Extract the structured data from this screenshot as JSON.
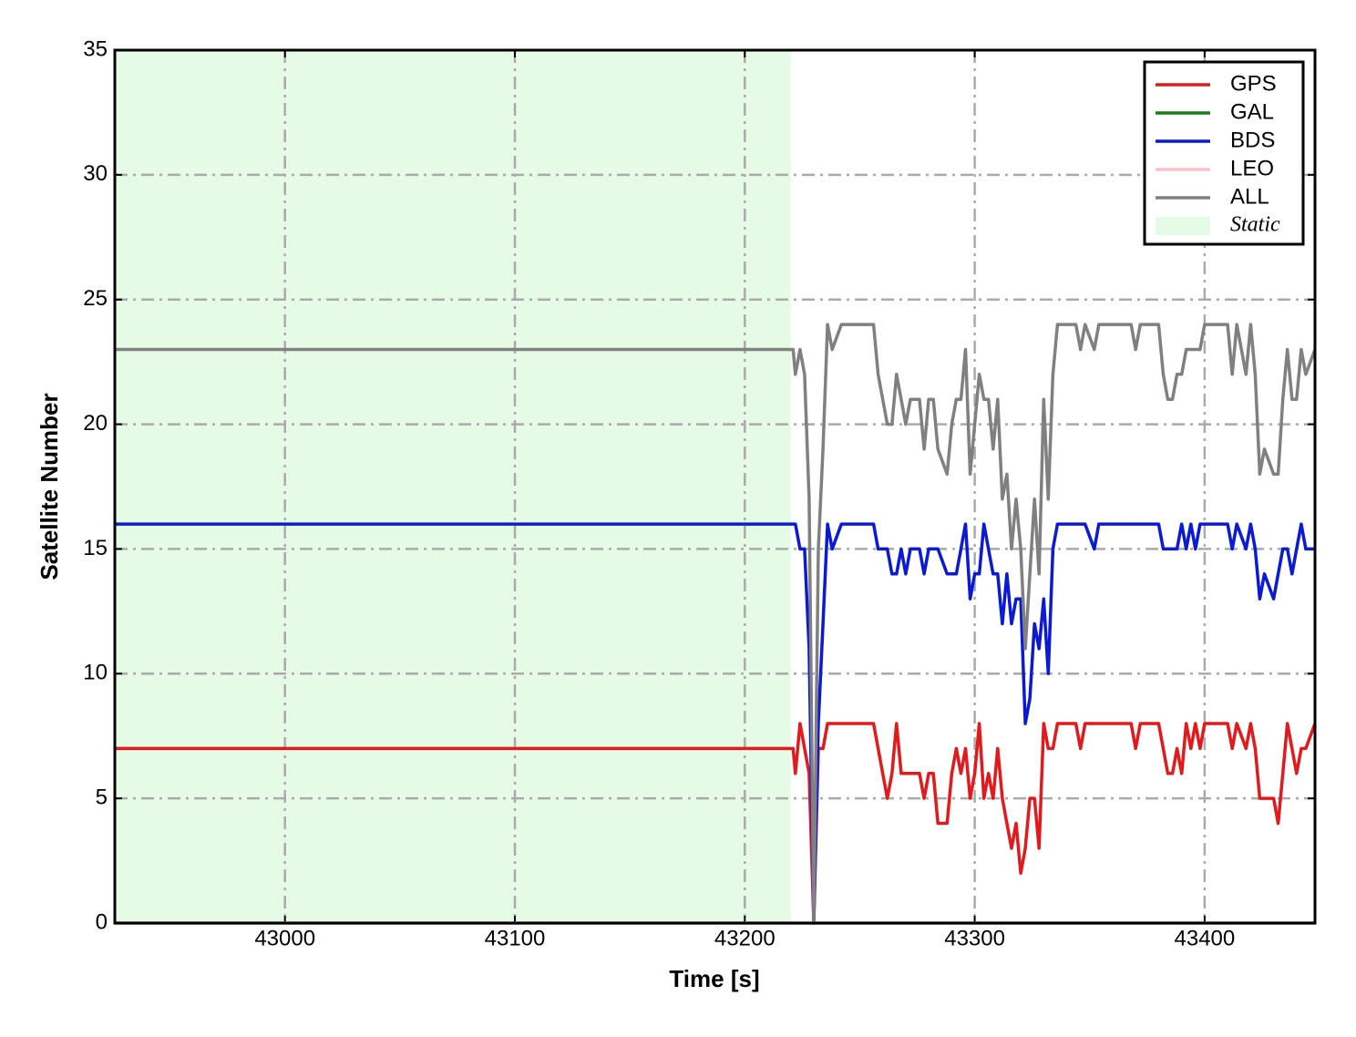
{
  "chart_data": {
    "type": "line",
    "xlabel": "Time [s]",
    "ylabel": "Satellite Number",
    "x": [
      42926,
      43221,
      43222,
      43224,
      43226,
      43228,
      43230,
      43232,
      43234,
      43236,
      43238,
      43242,
      43256,
      43258,
      43262,
      43264,
      43266,
      43268,
      43270,
      43272,
      43276,
      43278,
      43280,
      43282,
      43284,
      43288,
      43290,
      43292,
      43294,
      43296,
      43298,
      43300,
      43302,
      43304,
      43306,
      43308,
      43310,
      43312,
      43314,
      43316,
      43318,
      43320,
      43322,
      43324,
      43326,
      43328,
      43330,
      43332,
      43334,
      43336,
      43344,
      43346,
      43348,
      43352,
      43354,
      43368,
      43370,
      43372,
      43380,
      43382,
      43384,
      43386,
      43388,
      43390,
      43392,
      43394,
      43396,
      43398,
      43400,
      43410,
      43412,
      43414,
      43418,
      43420,
      43422,
      43424,
      43426,
      43430,
      43432,
      43434,
      43436,
      43438,
      43440,
      43442,
      43444,
      43448
    ],
    "series": [
      {
        "name": "GPS",
        "color": "#e31a1c",
        "values": [
          7,
          7,
          6,
          8,
          7,
          6,
          0,
          7,
          7,
          8,
          8,
          8,
          8,
          7,
          5,
          6,
          8,
          6,
          6,
          6,
          6,
          5,
          6,
          6,
          4,
          4,
          6,
          7,
          6,
          7,
          5,
          6,
          8,
          5,
          6,
          5,
          7,
          5,
          4,
          3,
          4,
          2,
          3,
          5,
          5,
          3,
          8,
          7,
          7,
          8,
          8,
          7,
          8,
          8,
          8,
          8,
          7,
          8,
          8,
          7,
          6,
          6,
          7,
          6,
          8,
          7,
          8,
          7,
          8,
          8,
          7,
          8,
          7,
          8,
          7,
          5,
          5,
          5,
          4,
          6,
          8,
          7,
          6,
          7,
          7,
          8
        ]
      },
      {
        "name": "GAL",
        "color": "#1a7f1a",
        "values": [
          0,
          0,
          0,
          0,
          0,
          0,
          0,
          0,
          0,
          0,
          0,
          0,
          0,
          0,
          0,
          0,
          0,
          0,
          0,
          0,
          0,
          0,
          0,
          0,
          0,
          0,
          0,
          0,
          0,
          0,
          0,
          0,
          0,
          0,
          0,
          0,
          0,
          0,
          0,
          0,
          0,
          0,
          0,
          0,
          0,
          0,
          0,
          0,
          0,
          0,
          0,
          0,
          0,
          0,
          0,
          0,
          0,
          0,
          0,
          0,
          0,
          0,
          0,
          0,
          0,
          0,
          0,
          0,
          0,
          0,
          0,
          0,
          0,
          0,
          0,
          0,
          0,
          0,
          0,
          0,
          0,
          0,
          0,
          0,
          0,
          0
        ]
      },
      {
        "name": "BDS",
        "color": "#0a1ad6",
        "values": [
          16,
          16,
          16,
          15,
          15,
          11,
          0,
          8,
          12,
          16,
          15,
          16,
          16,
          15,
          15,
          14,
          14,
          15,
          14,
          15,
          15,
          14,
          15,
          15,
          15,
          14,
          14,
          14,
          15,
          16,
          13,
          14,
          14,
          16,
          15,
          14,
          14,
          12,
          14,
          12,
          13,
          13,
          8,
          9,
          12,
          11,
          13,
          10,
          15,
          16,
          16,
          16,
          16,
          15,
          16,
          16,
          16,
          16,
          16,
          15,
          15,
          15,
          15,
          16,
          15,
          16,
          15,
          16,
          16,
          16,
          15,
          16,
          15,
          16,
          15,
          13,
          14,
          13,
          14,
          15,
          15,
          14,
          15,
          16,
          15,
          15
        ]
      },
      {
        "name": "LEO",
        "color": "#ffc0cb",
        "values": [
          0,
          0,
          0,
          0,
          0,
          0,
          0,
          0,
          0,
          0,
          0,
          0,
          0,
          0,
          0,
          0,
          0,
          0,
          0,
          0,
          0,
          0,
          0,
          0,
          0,
          0,
          0,
          0,
          0,
          0,
          0,
          0,
          0,
          0,
          0,
          0,
          0,
          0,
          0,
          0,
          0,
          0,
          0,
          0,
          0,
          0,
          0,
          0,
          0,
          0,
          0,
          0,
          0,
          0,
          0,
          0,
          0,
          0,
          0,
          0,
          0,
          0,
          0,
          0,
          0,
          0,
          0,
          0,
          0,
          0,
          0,
          0,
          0,
          0,
          0,
          0,
          0,
          0,
          0,
          0,
          0,
          0,
          0,
          0,
          0,
          0
        ]
      },
      {
        "name": "ALL",
        "color": "#808080",
        "values": [
          23,
          23,
          22,
          23,
          22,
          17,
          0,
          15,
          19,
          24,
          23,
          24,
          24,
          22,
          20,
          20,
          22,
          21,
          20,
          21,
          21,
          19,
          21,
          21,
          19,
          18,
          20,
          21,
          21,
          23,
          18,
          20,
          22,
          21,
          21,
          19,
          21,
          17,
          18,
          15,
          17,
          15,
          11,
          14,
          17,
          14,
          21,
          17,
          22,
          24,
          24,
          23,
          24,
          23,
          24,
          24,
          23,
          24,
          24,
          22,
          21,
          21,
          22,
          22,
          23,
          23,
          23,
          23,
          24,
          24,
          22,
          24,
          22,
          24,
          22,
          18,
          19,
          18,
          18,
          21,
          23,
          21,
          21,
          23,
          22,
          23
        ]
      }
    ],
    "spans": [
      {
        "label": "Static",
        "color": "#e6fbe6",
        "x": [
          42926,
          43220
        ]
      }
    ],
    "xlim": [
      42926,
      43448
    ],
    "ylim": [
      0,
      35
    ],
    "xticks": [
      43000,
      43100,
      43200,
      43300,
      43400
    ],
    "yticks": [
      0,
      5,
      10,
      15,
      20,
      25,
      30,
      35
    ],
    "grid": true,
    "legend": "upper right"
  }
}
